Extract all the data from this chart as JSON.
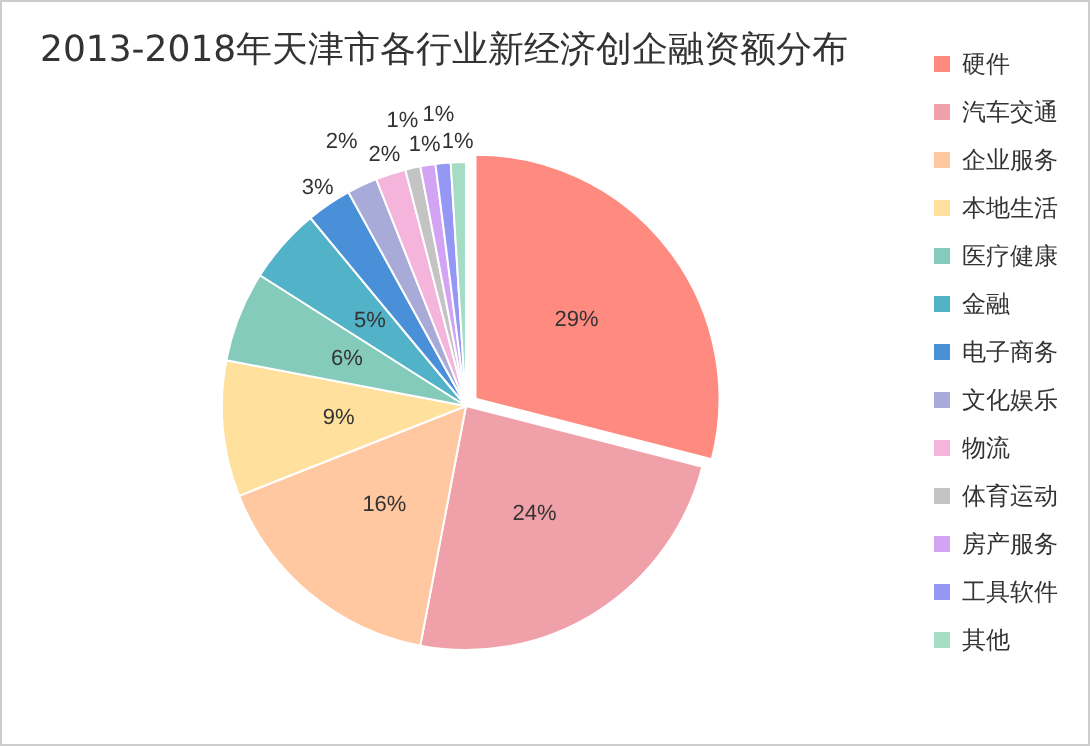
{
  "chart_data": {
    "type": "pie",
    "title": "2013-2018年天津市各行业新经济创企融资额分布",
    "categories": [
      "硬件",
      "汽车交通",
      "企业服务",
      "本地生活",
      "医疗健康",
      "金融",
      "电子商务",
      "文化娱乐",
      "物流",
      "体育运动",
      "房产服务",
      "工具软件",
      "其他"
    ],
    "values": [
      29,
      24,
      16,
      9,
      6,
      5,
      3,
      2,
      2,
      1,
      1,
      1,
      1
    ],
    "colors": [
      "#ff8a80",
      "#f0a0a8",
      "#ffc8a0",
      "#ffe09c",
      "#84cbbb",
      "#52b2c8",
      "#4a90d8",
      "#a8aad8",
      "#f4b4dc",
      "#c4c4c4",
      "#d4a4f4",
      "#9498f4",
      "#a4dcc4"
    ],
    "value_labels": [
      "29%",
      "24%",
      "16%",
      "9%",
      "6%",
      "5%",
      "3%",
      "2%",
      "2%",
      "1%",
      "1%",
      "1%",
      "1%"
    ],
    "legend": "right"
  }
}
